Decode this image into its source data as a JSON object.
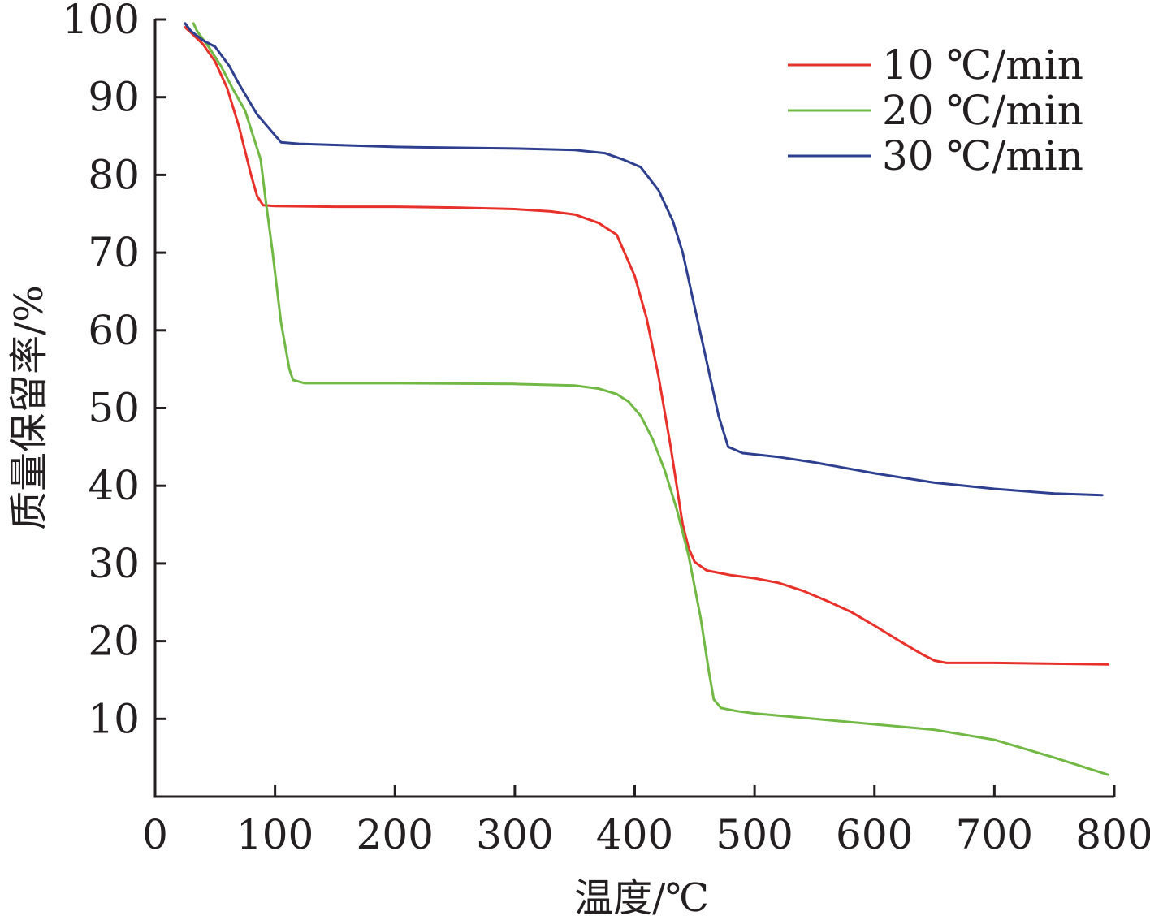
{
  "chart_data": {
    "type": "line",
    "title": "",
    "xlabel": "温度/℃",
    "ylabel": "质量保留率/%",
    "xlim": [
      0,
      800
    ],
    "ylim": [
      0,
      100
    ],
    "x_ticks": [
      0,
      100,
      200,
      300,
      400,
      500,
      600,
      700,
      800
    ],
    "y_ticks": [
      10,
      20,
      30,
      40,
      50,
      60,
      70,
      80,
      90,
      100
    ],
    "grid": false,
    "legend_position": "top-right",
    "series": [
      {
        "name": "10 ℃/min",
        "color": "#e8312a",
        "points": [
          [
            25,
            99
          ],
          [
            30,
            98.3
          ],
          [
            40,
            96.8
          ],
          [
            50,
            94.6
          ],
          [
            60,
            91.2
          ],
          [
            70,
            86.2
          ],
          [
            80,
            80
          ],
          [
            85,
            77.3
          ],
          [
            90,
            76.1
          ],
          [
            100,
            76
          ],
          [
            150,
            75.9
          ],
          [
            200,
            75.9
          ],
          [
            250,
            75.8
          ],
          [
            300,
            75.6
          ],
          [
            330,
            75.3
          ],
          [
            350,
            74.9
          ],
          [
            370,
            73.8
          ],
          [
            385,
            72.3
          ],
          [
            400,
            67
          ],
          [
            410,
            61.5
          ],
          [
            420,
            54
          ],
          [
            430,
            45
          ],
          [
            440,
            35
          ],
          [
            445,
            32
          ],
          [
            450,
            30.2
          ],
          [
            460,
            29.1
          ],
          [
            480,
            28.5
          ],
          [
            500,
            28.1
          ],
          [
            520,
            27.5
          ],
          [
            540,
            26.5
          ],
          [
            560,
            25.2
          ],
          [
            580,
            23.8
          ],
          [
            600,
            22
          ],
          [
            620,
            20.1
          ],
          [
            640,
            18.3
          ],
          [
            650,
            17.5
          ],
          [
            660,
            17.2
          ],
          [
            700,
            17.2
          ],
          [
            750,
            17.1
          ],
          [
            795,
            17
          ]
        ]
      },
      {
        "name": "20 ℃/min",
        "color": "#71b845",
        "points": [
          [
            32,
            99.5
          ],
          [
            35,
            98.5
          ],
          [
            45,
            96.4
          ],
          [
            55,
            94
          ],
          [
            65,
            91
          ],
          [
            75,
            88.3
          ],
          [
            88,
            82
          ],
          [
            92,
            77
          ],
          [
            98,
            70
          ],
          [
            105,
            61
          ],
          [
            112,
            55
          ],
          [
            115,
            53.6
          ],
          [
            125,
            53.2
          ],
          [
            200,
            53.2
          ],
          [
            300,
            53.1
          ],
          [
            350,
            52.9
          ],
          [
            370,
            52.5
          ],
          [
            385,
            51.8
          ],
          [
            395,
            50.8
          ],
          [
            405,
            49
          ],
          [
            415,
            46
          ],
          [
            425,
            42
          ],
          [
            435,
            37
          ],
          [
            445,
            31
          ],
          [
            455,
            23
          ],
          [
            462,
            16
          ],
          [
            466,
            12.5
          ],
          [
            472,
            11.4
          ],
          [
            485,
            11
          ],
          [
            500,
            10.7
          ],
          [
            550,
            10
          ],
          [
            600,
            9.3
          ],
          [
            650,
            8.6
          ],
          [
            700,
            7.3
          ],
          [
            750,
            5
          ],
          [
            795,
            2.8
          ]
        ]
      },
      {
        "name": "30 ℃/min",
        "color": "#2e3f8f",
        "points": [
          [
            25,
            99.5
          ],
          [
            30,
            98.5
          ],
          [
            40,
            97.3
          ],
          [
            50,
            96.5
          ],
          [
            62,
            94
          ],
          [
            70,
            91.7
          ],
          [
            85,
            87.8
          ],
          [
            95,
            86
          ],
          [
            105,
            84.2
          ],
          [
            120,
            84
          ],
          [
            200,
            83.6
          ],
          [
            300,
            83.4
          ],
          [
            350,
            83.2
          ],
          [
            375,
            82.8
          ],
          [
            390,
            82
          ],
          [
            405,
            81
          ],
          [
            420,
            78
          ],
          [
            432,
            74
          ],
          [
            440,
            70
          ],
          [
            450,
            63
          ],
          [
            460,
            56
          ],
          [
            470,
            49
          ],
          [
            478,
            45
          ],
          [
            490,
            44.2
          ],
          [
            520,
            43.7
          ],
          [
            550,
            43
          ],
          [
            575,
            42.3
          ],
          [
            600,
            41.6
          ],
          [
            650,
            40.4
          ],
          [
            700,
            39.6
          ],
          [
            750,
            39
          ],
          [
            790,
            38.8
          ]
        ]
      }
    ]
  }
}
